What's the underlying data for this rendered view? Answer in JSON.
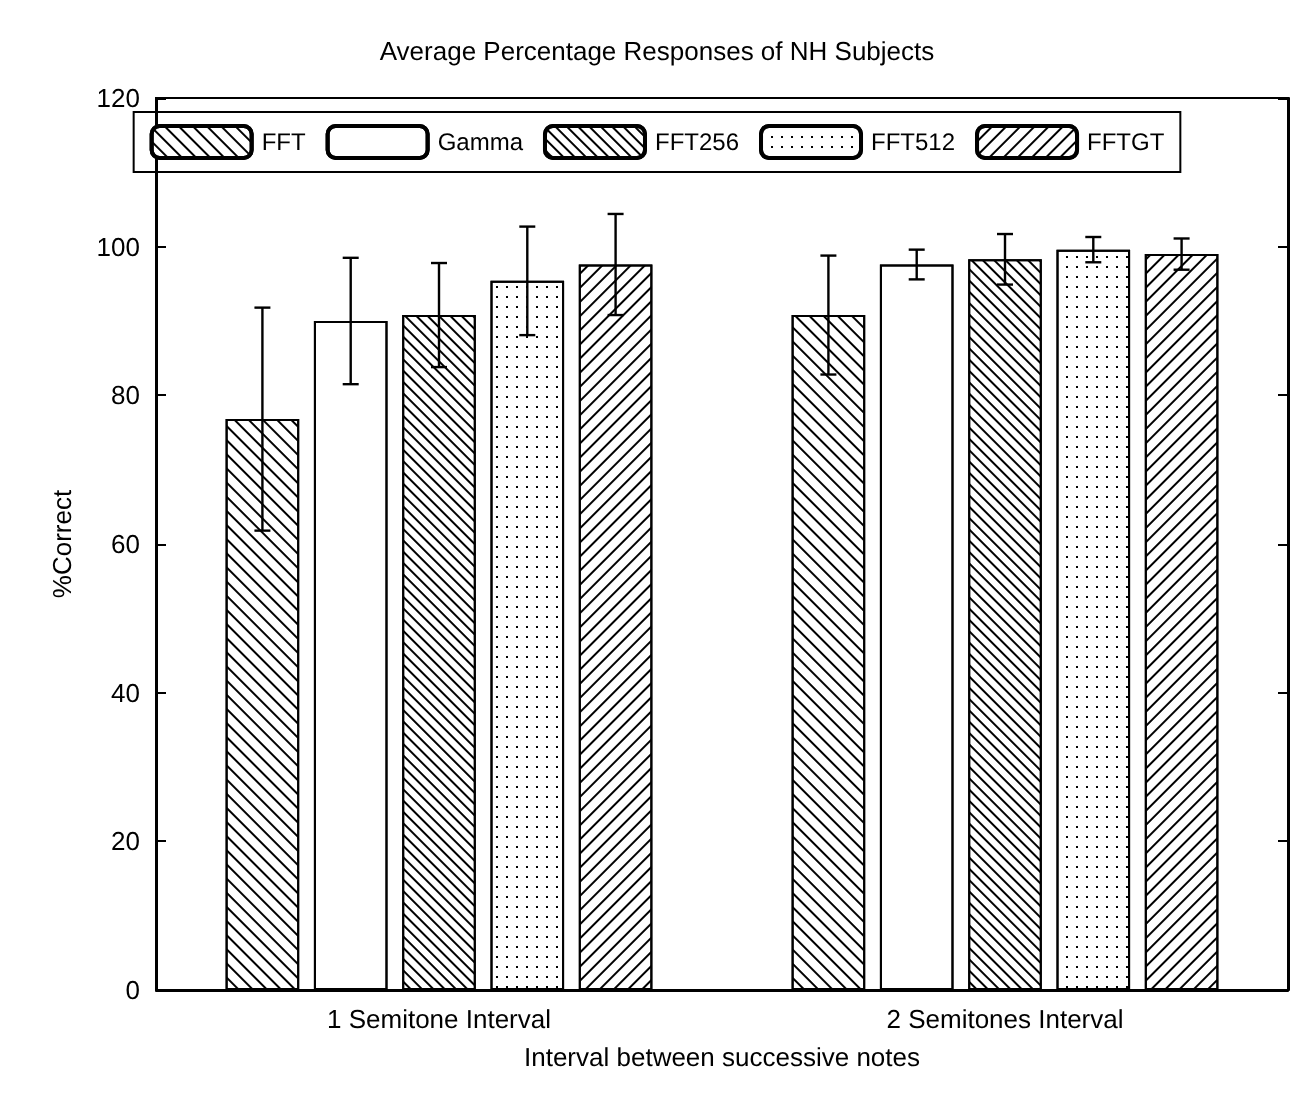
{
  "chart_data": {
    "type": "bar",
    "title": "Average Percentage Responses of NH Subjects",
    "xlabel": "Interval between successive notes",
    "ylabel": "%Correct",
    "categories": [
      "1 Semitone Interval",
      "2 Semitones Interval"
    ],
    "series": [
      {
        "name": "FFT",
        "color": "#ffffff",
        "values": [
          76.8,
          90.8
        ],
        "errors": [
          15,
          8
        ]
      },
      {
        "name": "Gamma",
        "color": "#ffffff",
        "values": [
          90,
          97.6
        ],
        "errors": [
          8.5,
          2
        ]
      },
      {
        "name": "FFT256",
        "color": "#ffffff",
        "values": [
          90.8,
          98.3
        ],
        "errors": [
          7,
          3.4
        ]
      },
      {
        "name": "FFT512",
        "color": "#ffffff",
        "values": [
          95.4,
          99.6
        ],
        "errors": [
          7.3,
          1.7
        ]
      },
      {
        "name": "FFTGT",
        "color": "#ffffff",
        "values": [
          97.6,
          99
        ],
        "errors": [
          6.8,
          2.1
        ]
      }
    ],
    "ylim": [
      0,
      120
    ],
    "yticks": [
      0,
      20,
      40,
      60,
      80,
      100,
      120
    ],
    "legend": "top",
    "grid": false
  }
}
